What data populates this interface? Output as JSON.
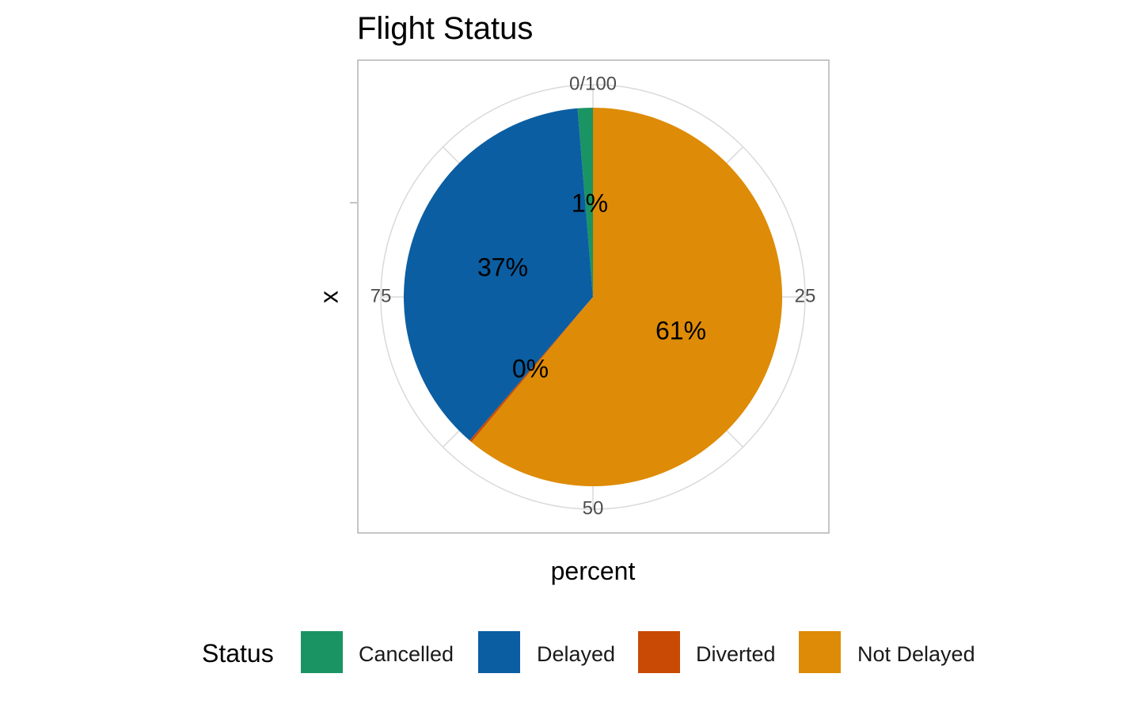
{
  "chart_data": {
    "type": "pie",
    "title": "Flight Status",
    "xlabel": "percent",
    "ylabel": "x",
    "theta_ticks": [
      {
        "value": 0,
        "label": "0/100"
      },
      {
        "value": 25,
        "label": "25"
      },
      {
        "value": 50,
        "label": "50"
      },
      {
        "value": 75,
        "label": "75"
      }
    ],
    "categories": [
      "Cancelled",
      "Delayed",
      "Diverted",
      "Not Delayed"
    ],
    "values": [
      1.3,
      37.4,
      0.2,
      61.1
    ],
    "labels": [
      "1%",
      "37%",
      "0%",
      "61%"
    ],
    "colors": [
      "#1B9463",
      "#0B5EA2",
      "#C84A05",
      "#DE8B07"
    ],
    "legend": {
      "title": "Status",
      "position": "bottom",
      "entries": [
        "Cancelled",
        "Delayed",
        "Diverted",
        "Not Delayed"
      ]
    },
    "grid": true
  }
}
